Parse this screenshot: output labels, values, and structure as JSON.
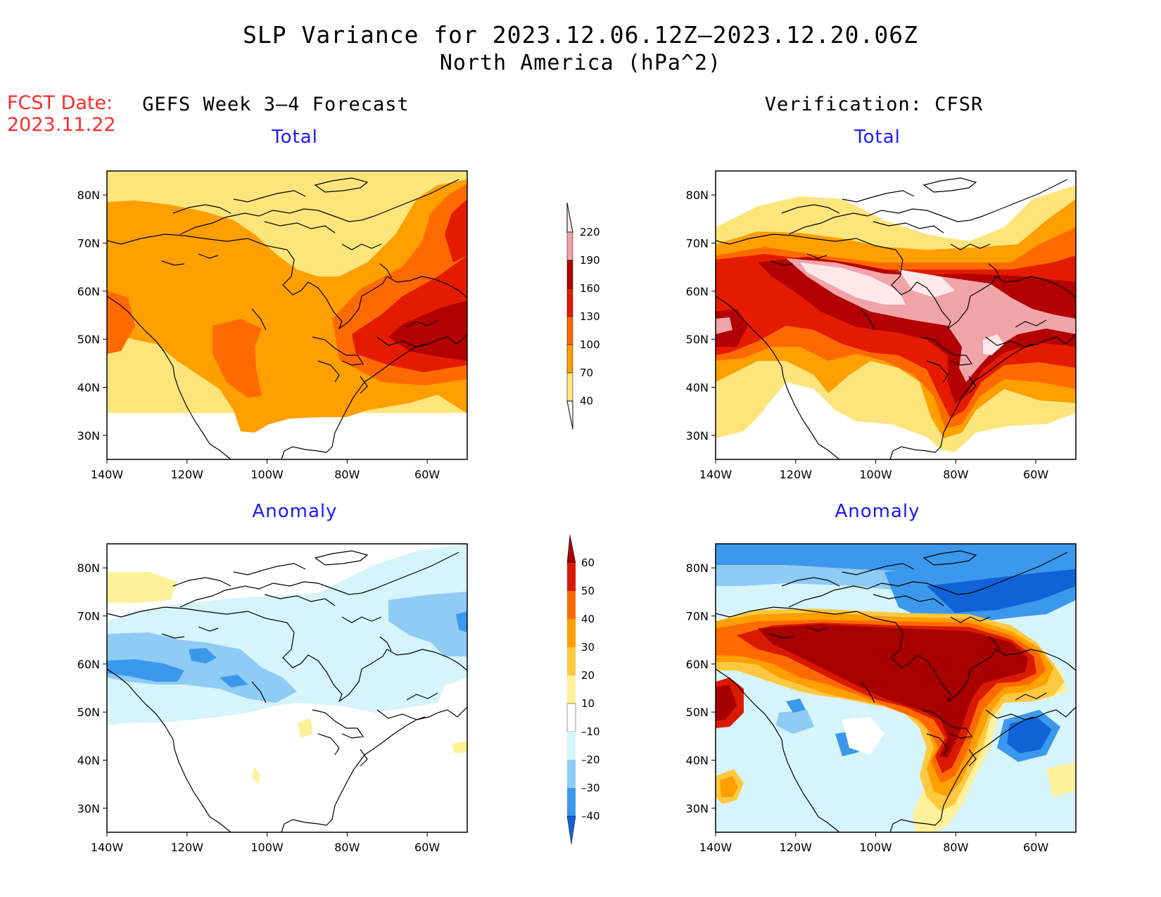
{
  "header": {
    "title": "SLP Variance for 2023.12.06.12Z–2023.12.20.06Z",
    "subtitle": "North America (hPa^2)"
  },
  "fcst_date": {
    "label": "FCST Date:",
    "value": "2023.11.22"
  },
  "columns": {
    "left": "GEFS Week 3–4 Forecast",
    "right": "Verification: CFSR"
  },
  "panels": {
    "top_left": "Total",
    "top_right": "Total",
    "bottom_left": "Anomaly",
    "bottom_right": "Anomaly"
  },
  "axes": {
    "lat_labels": [
      "80N",
      "70N",
      "60N",
      "50N",
      "40N",
      "30N"
    ],
    "lon_labels": [
      "140W",
      "120W",
      "100W",
      "80W",
      "60W"
    ],
    "lat_range": [
      25,
      85
    ],
    "lon_range": [
      -140,
      -50
    ]
  },
  "colorbars": {
    "total": {
      "levels": [
        "40",
        "70",
        "100",
        "130",
        "160",
        "190",
        "220"
      ],
      "colors": [
        "#fde57c",
        "#ff9f00",
        "#ff6a00",
        "#e51b00",
        "#b30000",
        "#f1a4a8",
        "#fde8ea"
      ]
    },
    "anomaly": {
      "levels": [
        "60",
        "50",
        "40",
        "30",
        "20",
        "10",
        "–10",
        "–20",
        "–30",
        "–40"
      ],
      "colors": [
        "#a80000",
        "#d91a00",
        "#ff6a00",
        "#ff9f00",
        "#ffc840",
        "#fff09a",
        "#ffffff",
        "#d5f4fb",
        "#8ecbf5",
        "#3c98ec",
        "#1063d6"
      ]
    }
  },
  "colors": {
    "title_red": "#ff2a2a",
    "subtitle_blue": "#1a1aff"
  }
}
